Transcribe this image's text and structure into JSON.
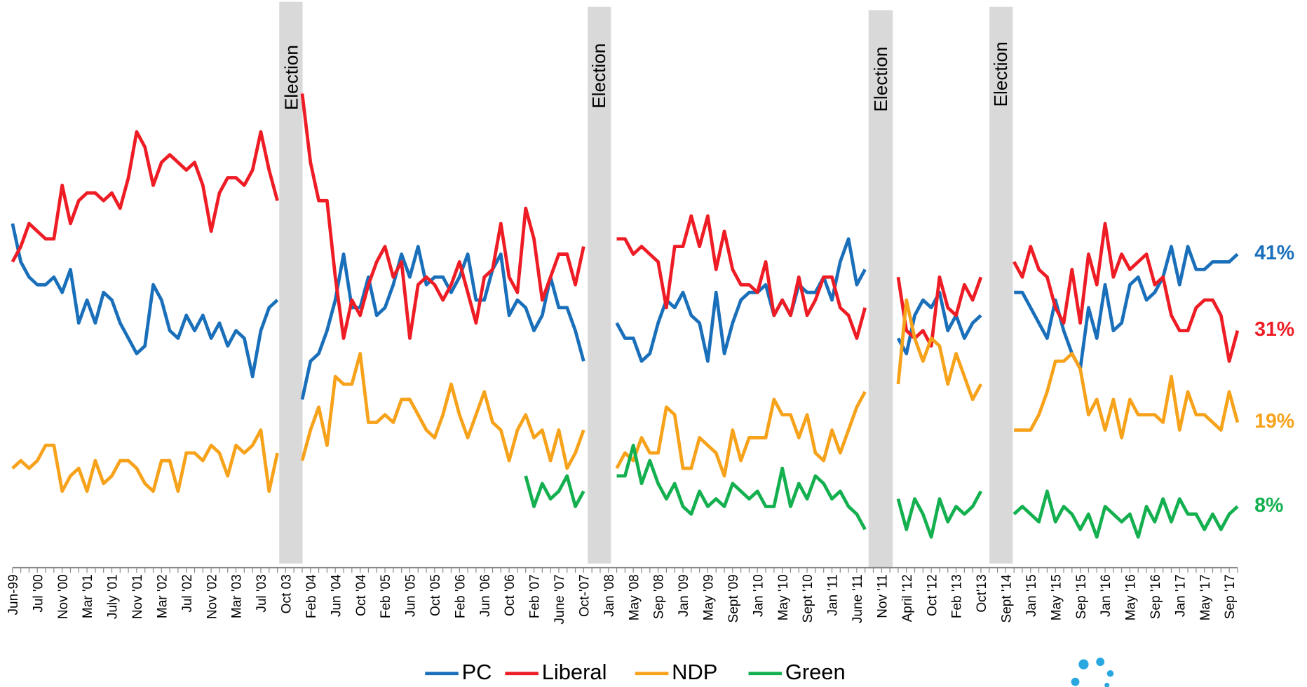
{
  "chart_data": {
    "type": "line",
    "annotations": [
      "Election",
      "Election",
      "Election",
      "Election"
    ],
    "categories": [
      "Jun-99",
      null,
      null,
      "Jul '00",
      null,
      null,
      "Nov '00",
      null,
      null,
      "Mar '01",
      null,
      null,
      "July '01",
      null,
      null,
      "Nov '01",
      null,
      null,
      "Mar '02",
      null,
      null,
      "Jul '02",
      null,
      null,
      "Nov '02",
      null,
      null,
      "Mar '03",
      null,
      null,
      "Jul '03",
      null,
      null,
      "Oct 03",
      null,
      null,
      "Feb '04",
      null,
      null,
      "Jun '04",
      null,
      null,
      "Oct '04",
      null,
      null,
      "Feb '05",
      null,
      null,
      "Jun '05",
      null,
      null,
      "Oct '05",
      null,
      null,
      "Feb '06",
      null,
      null,
      "Jun '06",
      null,
      null,
      "Oct '06",
      null,
      null,
      "Feb '07",
      null,
      null,
      "June '07",
      null,
      null,
      "Oct-'07",
      null,
      null,
      "Jan '08",
      null,
      null,
      "May '08",
      null,
      null,
      "Sep '08",
      null,
      null,
      "Jan '09",
      null,
      null,
      "May '09",
      null,
      null,
      "Sept '09",
      null,
      null,
      "Jan '10",
      null,
      null,
      "May '10",
      null,
      null,
      "Sept '10",
      null,
      null,
      "Jan '11",
      null,
      null,
      "June '11",
      null,
      null,
      "Nov '11",
      null,
      null,
      "April '12",
      null,
      null,
      "Oct '12",
      null,
      null,
      "Feb '13",
      null,
      null,
      "Oct'13",
      null,
      null,
      "Sept '14",
      null,
      null,
      "Jan '15",
      null,
      null,
      "May '15",
      null,
      null,
      "Sep '15",
      null,
      null,
      "Jan '16",
      null,
      null,
      "May '16",
      null,
      null,
      "Sep '16",
      null,
      null,
      "Jan '17",
      null,
      null,
      "May '17",
      null,
      null,
      "Sep '17",
      null
    ],
    "ylim": [
      0,
      74
    ],
    "series": [
      {
        "name": "PC",
        "color": "#1a6fba",
        "end_label": "41%",
        "values": [
          45,
          40,
          38,
          37,
          37,
          38,
          36,
          39,
          32,
          35,
          32,
          36,
          35,
          32,
          30,
          28,
          29,
          37,
          35,
          31,
          30,
          33,
          31,
          33,
          30,
          32,
          29,
          31,
          30,
          25,
          31,
          34,
          35,
          null,
          null,
          22,
          27,
          28,
          31,
          35,
          41,
          34,
          34,
          38,
          33,
          34,
          37,
          41,
          38,
          42,
          37,
          38,
          38,
          36,
          38,
          41,
          35,
          35,
          39,
          41,
          33,
          35,
          34,
          31,
          33,
          38,
          34,
          34,
          31,
          27,
          null,
          null,
          null,
          32,
          30,
          30,
          27,
          28,
          32,
          35,
          34,
          36,
          33,
          32,
          27,
          36,
          28,
          32,
          35,
          36,
          36,
          37,
          33,
          35,
          33,
          37,
          36,
          36,
          38,
          35,
          40,
          43,
          37,
          39,
          null,
          null,
          null,
          30,
          28,
          33,
          35,
          34,
          36,
          31,
          33,
          30,
          32,
          33,
          null,
          null,
          null,
          36,
          36,
          34,
          32,
          30,
          35,
          31,
          28,
          26,
          34,
          30,
          37,
          31,
          32,
          37,
          38,
          35,
          36,
          38,
          42,
          37,
          42,
          39,
          39,
          40,
          40,
          40,
          41
        ]
      },
      {
        "name": "Liberal",
        "color": "#ee1c25",
        "end_label": "31%",
        "values": [
          40,
          42,
          45,
          44,
          43,
          43,
          50,
          45,
          48,
          49,
          49,
          48,
          49,
          47,
          51,
          57,
          55,
          50,
          53,
          54,
          53,
          52,
          53,
          50,
          44,
          49,
          51,
          51,
          50,
          52,
          57,
          52,
          48,
          null,
          null,
          62,
          53,
          48,
          48,
          38,
          30,
          35,
          33,
          37,
          40,
          42,
          38,
          40,
          30,
          37,
          38,
          37,
          35,
          37,
          40,
          36,
          32,
          38,
          39,
          45,
          38,
          36,
          47,
          43,
          35,
          38,
          41,
          41,
          37,
          42,
          null,
          null,
          null,
          43,
          43,
          41,
          42,
          41,
          40,
          34,
          42,
          42,
          46,
          42,
          46,
          39,
          44,
          39,
          37,
          37,
          36,
          40,
          33,
          35,
          33,
          38,
          33,
          35,
          38,
          38,
          34,
          33,
          30,
          34,
          null,
          null,
          null,
          38,
          31,
          30,
          31,
          29,
          38,
          34,
          33,
          37,
          35,
          38,
          null,
          null,
          null,
          40,
          38,
          42,
          39,
          38,
          34,
          32,
          39,
          32,
          41,
          37,
          45,
          38,
          41,
          39,
          40,
          41,
          37,
          38,
          33,
          31,
          31,
          34,
          35,
          35,
          33,
          27,
          31
        ]
      },
      {
        "name": "NDP",
        "color": "#f7a21b",
        "end_label": "19%",
        "values": [
          13,
          14,
          13,
          14,
          16,
          16,
          10,
          12,
          13,
          10,
          14,
          11,
          12,
          14,
          14,
          13,
          11,
          10,
          14,
          14,
          10,
          15,
          15,
          14,
          16,
          15,
          12,
          16,
          15,
          16,
          18,
          10,
          15,
          null,
          null,
          14,
          18,
          21,
          16,
          25,
          24,
          24,
          28,
          19,
          19,
          20,
          19,
          22,
          22,
          20,
          18,
          17,
          20,
          24,
          20,
          17,
          20,
          23,
          19,
          18,
          14,
          18,
          20,
          17,
          18,
          14,
          18,
          13,
          15,
          18,
          null,
          null,
          null,
          13,
          15,
          14,
          17,
          15,
          15,
          21,
          20,
          13,
          13,
          17,
          16,
          15,
          12,
          18,
          14,
          17,
          17,
          17,
          22,
          20,
          20,
          17,
          20,
          15,
          14,
          18,
          15,
          18,
          21,
          23,
          null,
          null,
          null,
          24,
          35,
          30,
          27,
          30,
          29,
          24,
          28,
          25,
          22,
          24,
          null,
          null,
          null,
          18,
          18,
          18,
          20,
          23,
          27,
          27,
          28,
          26,
          20,
          22,
          18,
          22,
          17,
          22,
          20,
          20,
          20,
          19,
          25,
          18,
          23,
          20,
          20,
          19,
          18,
          23,
          19
        ]
      },
      {
        "name": "Green",
        "color": "#14b050",
        "end_label": "8%",
        "values": [
          null,
          null,
          null,
          null,
          null,
          null,
          null,
          null,
          null,
          null,
          null,
          null,
          null,
          null,
          null,
          null,
          null,
          null,
          null,
          null,
          null,
          null,
          null,
          null,
          null,
          null,
          null,
          null,
          null,
          null,
          null,
          null,
          null,
          null,
          null,
          null,
          null,
          null,
          null,
          null,
          null,
          null,
          null,
          null,
          null,
          null,
          null,
          null,
          null,
          null,
          null,
          null,
          null,
          null,
          null,
          null,
          null,
          null,
          null,
          null,
          null,
          null,
          12,
          8,
          11,
          9,
          10,
          12,
          8,
          10,
          null,
          null,
          null,
          12,
          12,
          16,
          11,
          14,
          11,
          9,
          11,
          8,
          7,
          10,
          8,
          9,
          8,
          11,
          10,
          9,
          10,
          8,
          8,
          13,
          8,
          11,
          9,
          12,
          11,
          9,
          10,
          8,
          7,
          5,
          null,
          null,
          null,
          9,
          5,
          9,
          7,
          4,
          9,
          6,
          8,
          7,
          8,
          10,
          null,
          null,
          null,
          7,
          8,
          7,
          6,
          10,
          6,
          8,
          7,
          5,
          7,
          4,
          8,
          7,
          6,
          7,
          4,
          8,
          6,
          9,
          6,
          9,
          7,
          7,
          5,
          7,
          5,
          7,
          8
        ]
      }
    ]
  }
}
